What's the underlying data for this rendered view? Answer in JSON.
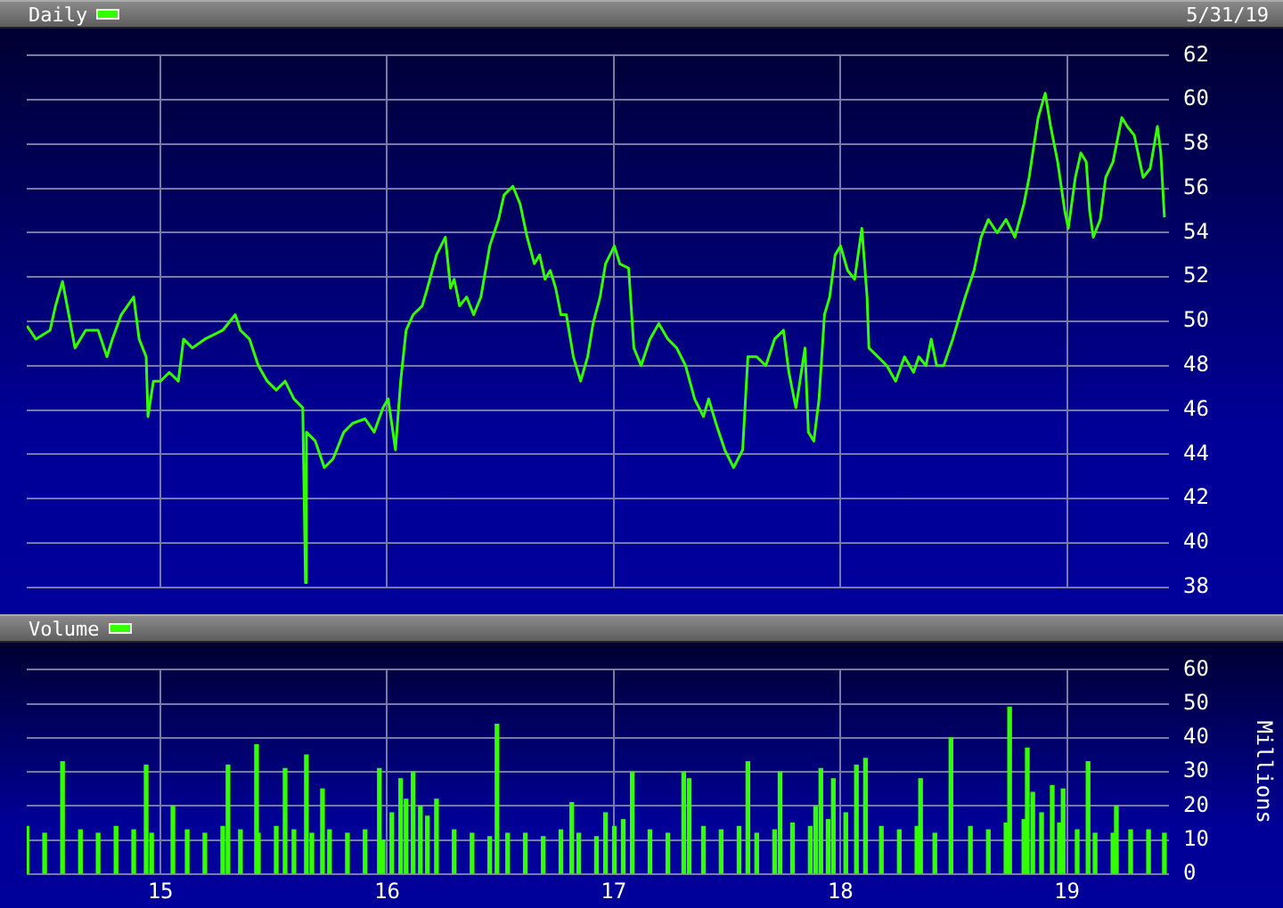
{
  "chart_data": [
    {
      "type": "line",
      "series": [
        {
          "name": "Daily",
          "color": "#33ff00",
          "x": [
            2014.411,
            2014.45,
            2014.513,
            2014.537,
            2014.568,
            2014.592,
            2014.623,
            2014.67,
            2014.725,
            2014.764,
            2014.788,
            2014.827,
            2014.882,
            2014.906,
            2014.937,
            2014.945,
            2014.969,
            2015.0,
            2015.039,
            2015.079,
            2015.102,
            2015.141,
            2015.196,
            2015.236,
            2015.275,
            2015.33,
            2015.353,
            2015.393,
            2015.432,
            2015.471,
            2015.511,
            2015.55,
            2015.589,
            2015.628,
            2015.64,
            2015.644,
            2015.683,
            2015.723,
            2015.762,
            2015.809,
            2015.848,
            2015.903,
            2015.943,
            2015.982,
            2016.005,
            2016.037,
            2016.06,
            2016.084,
            2016.115,
            2016.155,
            2016.178,
            2016.218,
            2016.257,
            2016.28,
            2016.296,
            2016.32,
            2016.351,
            2016.382,
            2016.414,
            2016.453,
            2016.492,
            2016.516,
            2016.555,
            2016.587,
            2016.618,
            2016.65,
            2016.673,
            2016.697,
            2016.72,
            2016.744,
            2016.767,
            2016.791,
            2016.822,
            2016.854,
            2016.885,
            2016.909,
            2016.94,
            2016.964,
            2017.003,
            2017.027,
            2017.066,
            2017.089,
            2017.121,
            2017.16,
            2017.199,
            2017.239,
            2017.278,
            2017.317,
            2017.357,
            2017.396,
            2017.419,
            2017.451,
            2017.49,
            2017.529,
            2017.569,
            2017.592,
            2017.631,
            2017.671,
            2017.71,
            2017.749,
            2017.773,
            2017.804,
            2017.844,
            2017.859,
            2017.883,
            2017.906,
            2017.93,
            2017.953,
            2017.977,
            2018.001,
            2018.032,
            2018.063,
            2018.095,
            2018.118,
            2018.126,
            2018.166,
            2018.205,
            2018.244,
            2018.283,
            2018.323,
            2018.346,
            2018.378,
            2018.401,
            2018.425,
            2018.456,
            2018.496,
            2018.519,
            2018.551,
            2018.59,
            2018.621,
            2018.653,
            2018.692,
            2018.731,
            2018.77,
            2018.81,
            2018.833,
            2018.849,
            2018.873,
            2018.904,
            2018.928,
            2018.959,
            2018.99,
            2019.006,
            2019.037,
            2019.061,
            2019.085,
            2019.1,
            2019.116,
            2019.147,
            2019.171,
            2019.203,
            2019.242,
            2019.266,
            2019.297,
            2019.336,
            2019.367,
            2019.399,
            2019.414,
            2019.43
          ],
          "values": [
            49.8,
            49.2,
            49.6,
            50.7,
            51.8,
            50.5,
            48.8,
            49.6,
            49.6,
            48.4,
            49.2,
            50.3,
            51.1,
            49.2,
            48.4,
            45.7,
            47.3,
            47.3,
            47.7,
            47.3,
            49.2,
            48.8,
            49.2,
            49.4,
            49.6,
            50.3,
            49.6,
            49.2,
            48.0,
            47.3,
            46.9,
            47.3,
            46.5,
            46.1,
            38.2,
            45.0,
            44.6,
            43.4,
            43.8,
            45.0,
            45.4,
            45.6,
            45.0,
            46.1,
            46.5,
            44.2,
            47.3,
            49.6,
            50.3,
            50.7,
            51.5,
            53.0,
            53.8,
            51.5,
            51.9,
            50.7,
            51.1,
            50.3,
            51.1,
            53.4,
            54.6,
            55.7,
            56.1,
            55.3,
            53.8,
            52.6,
            53.0,
            51.9,
            52.3,
            51.5,
            50.3,
            50.3,
            48.4,
            47.3,
            48.4,
            49.9,
            51.1,
            52.6,
            53.4,
            52.6,
            52.4,
            48.8,
            48.0,
            49.2,
            49.9,
            49.2,
            48.8,
            48.0,
            46.5,
            45.7,
            46.5,
            45.4,
            44.2,
            43.4,
            44.2,
            48.4,
            48.4,
            48.0,
            49.2,
            49.6,
            47.7,
            46.1,
            48.8,
            45.0,
            44.6,
            46.5,
            50.3,
            51.1,
            53.0,
            53.4,
            52.3,
            51.9,
            54.2,
            51.1,
            48.8,
            48.4,
            48.0,
            47.3,
            48.4,
            47.7,
            48.4,
            48.0,
            49.2,
            48.0,
            48.0,
            49.2,
            50.0,
            51.1,
            52.3,
            53.8,
            54.6,
            54.0,
            54.6,
            53.8,
            55.3,
            56.5,
            57.6,
            59.2,
            60.3,
            58.8,
            57.2,
            55.0,
            54.2,
            56.5,
            57.6,
            57.2,
            55.0,
            53.8,
            54.6,
            56.5,
            57.2,
            59.2,
            58.8,
            58.4,
            56.5,
            56.9,
            58.8,
            57.6,
            54.7
          ]
        }
      ],
      "annotations": [
        "5/31/19"
      ],
      "xlim": [
        2014.41,
        2019.45
      ],
      "xticks": [
        {
          "value": 2015,
          "label": null
        },
        {
          "value": 2016,
          "label": null
        },
        {
          "value": 2017,
          "label": null
        },
        {
          "value": 2018,
          "label": null
        },
        {
          "value": 2019,
          "label": null
        }
      ],
      "ylim": [
        38,
        62
      ],
      "yticks": [
        38,
        40,
        42,
        44,
        46,
        48,
        50,
        52,
        54,
        56,
        58,
        60,
        62
      ],
      "grid": true,
      "legend": "top left",
      "tick_labels": "y"
    },
    {
      "type": "bar",
      "series": [
        {
          "name": "Volume",
          "color": "#33ff00",
          "x": [
            2014.411,
            2014.489,
            2014.568,
            2014.647,
            2014.725,
            2014.804,
            2014.882,
            2014.937,
            2014.961,
            2015.055,
            2015.118,
            2015.196,
            2015.275,
            2015.298,
            2015.353,
            2015.424,
            2015.432,
            2015.511,
            2015.55,
            2015.589,
            2015.644,
            2015.668,
            2015.715,
            2015.746,
            2015.825,
            2015.903,
            2015.966,
            2015.982,
            2016.021,
            2016.06,
            2016.084,
            2016.115,
            2016.147,
            2016.178,
            2016.218,
            2016.296,
            2016.375,
            2016.453,
            2016.485,
            2016.532,
            2016.61,
            2016.689,
            2016.767,
            2016.815,
            2016.846,
            2016.924,
            2016.964,
            2017.003,
            2017.042,
            2017.082,
            2017.16,
            2017.239,
            2017.309,
            2017.333,
            2017.396,
            2017.474,
            2017.553,
            2017.592,
            2017.631,
            2017.71,
            2017.734,
            2017.789,
            2017.867,
            2017.891,
            2017.914,
            2017.946,
            2017.969,
            2018.024,
            2018.071,
            2018.111,
            2018.181,
            2018.26,
            2018.338,
            2018.354,
            2018.417,
            2018.488,
            2018.574,
            2018.653,
            2018.731,
            2018.747,
            2018.81,
            2018.825,
            2018.849,
            2018.888,
            2018.935,
            2018.967,
            2018.983,
            2019.045,
            2019.093,
            2019.124,
            2019.203,
            2019.218,
            2019.281,
            2019.36,
            2019.43
          ],
          "values": [
            14,
            12,
            33,
            13,
            12,
            14,
            13,
            32,
            12,
            20,
            13,
            12,
            14,
            32,
            13,
            38,
            12,
            14,
            31,
            13,
            35,
            12,
            25,
            13,
            12,
            13,
            31,
            10,
            18,
            28,
            22,
            30,
            20,
            17,
            22,
            13,
            12,
            11,
            44,
            12,
            12,
            11,
            13,
            21,
            12,
            11,
            18,
            14,
            16,
            30,
            13,
            12,
            30,
            28,
            14,
            13,
            14,
            33,
            12,
            13,
            30,
            15,
            14,
            20,
            31,
            16,
            28,
            18,
            32,
            34,
            14,
            13,
            14,
            28,
            12,
            40,
            14,
            13,
            15,
            49,
            16,
            37,
            24,
            18,
            26,
            15,
            25,
            13,
            33,
            12,
            12,
            20,
            13,
            13,
            12
          ]
        }
      ],
      "ylabel": "Millions",
      "xlim": [
        2014.41,
        2019.45
      ],
      "xticks": [
        {
          "value": 2015,
          "label": "15"
        },
        {
          "value": 2016,
          "label": "16"
        },
        {
          "value": 2017,
          "label": "17"
        },
        {
          "value": 2018,
          "label": "18"
        },
        {
          "value": 2019,
          "label": "19"
        }
      ],
      "ylim": [
        0,
        60
      ],
      "yticks": [
        0,
        10,
        20,
        30,
        40,
        50,
        60
      ],
      "grid": true,
      "legend": "top left"
    }
  ]
}
